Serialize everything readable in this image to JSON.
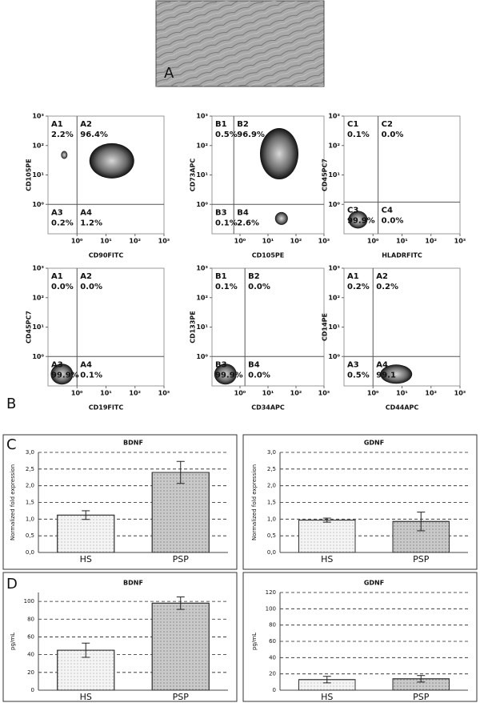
{
  "panel_labels": [
    "A",
    "B",
    "C",
    "D"
  ],
  "chart_data": [
    {
      "type": "flow",
      "xlabel": "CD90FITC",
      "ylabel": "CD105PE",
      "log_scale": true,
      "xlim": [
        0.1,
        1000
      ],
      "ylim": [
        0.1,
        1000
      ],
      "xticks": [
        {
          "value": 1,
          "label": "10⁰"
        },
        {
          "value": 10,
          "label": "10¹"
        },
        {
          "value": 100,
          "label": "10²"
        },
        {
          "value": 1000,
          "label": "10³"
        }
      ],
      "yticks": [
        {
          "value": 1,
          "label": "10⁰"
        },
        {
          "value": 10,
          "label": "10¹"
        },
        {
          "value": 100,
          "label": "10²"
        },
        {
          "value": 1000,
          "label": "10³"
        }
      ],
      "gates": [
        1,
        1
      ],
      "quadrants": [
        "A1",
        "A2",
        "A3",
        "A4"
      ],
      "values": [
        2.2,
        96.4,
        0.2,
        1.2
      ],
      "value_labels": [
        "2.2%",
        "96.4%",
        "0.2%",
        "1.2%"
      ]
    },
    {
      "type": "flow",
      "xlabel": "CD105PE",
      "ylabel": "CD73APC",
      "log_scale": true,
      "xlim": [
        0.1,
        1000
      ],
      "ylim": [
        0.1,
        1000
      ],
      "xticks": [
        {
          "value": 1,
          "label": "10⁰"
        },
        {
          "value": 10,
          "label": "10¹"
        },
        {
          "value": 100,
          "label": "10²"
        },
        {
          "value": 1000,
          "label": "10³"
        }
      ],
      "yticks": [
        {
          "value": 1,
          "label": "10⁰"
        },
        {
          "value": 10,
          "label": "10¹"
        },
        {
          "value": 100,
          "label": "10²"
        },
        {
          "value": 1000,
          "label": "10³"
        }
      ],
      "gates": [
        0.6,
        1
      ],
      "quadrants": [
        "B1",
        "B2",
        "B3",
        "B4"
      ],
      "values": [
        0.5,
        96.9,
        0.1,
        2.6
      ],
      "value_labels": [
        "0.5%",
        "96.9%",
        "0.1%",
        "2.6%"
      ]
    },
    {
      "type": "flow",
      "xlabel": "HLADRFITC",
      "ylabel": "CD45PC7",
      "log_scale": true,
      "xlim": [
        0.1,
        1000
      ],
      "ylim": [
        0.1,
        1000
      ],
      "xticks": [
        {
          "value": 1,
          "label": "10⁰"
        },
        {
          "value": 10,
          "label": "10¹"
        },
        {
          "value": 100,
          "label": "10²"
        },
        {
          "value": 1000,
          "label": "10³"
        }
      ],
      "yticks": [
        {
          "value": 1,
          "label": "10⁰"
        },
        {
          "value": 10,
          "label": "10¹"
        },
        {
          "value": 100,
          "label": "10²"
        },
        {
          "value": 1000,
          "label": "10³"
        }
      ],
      "gates": [
        1.5,
        1.2
      ],
      "quadrants": [
        "C1",
        "C2",
        "C3",
        "C4"
      ],
      "values": [
        0.1,
        0,
        99.9,
        0
      ],
      "value_labels": [
        "0.1%",
        "0.0%",
        "99.9%",
        "0.0%"
      ]
    },
    {
      "type": "flow",
      "xlabel": "CD19FITC",
      "ylabel": "CD45PC7",
      "log_scale": true,
      "xlim": [
        0.1,
        1000
      ],
      "ylim": [
        0.1,
        1000
      ],
      "xticks": [
        {
          "value": 1,
          "label": "10⁰"
        },
        {
          "value": 10,
          "label": "10¹"
        },
        {
          "value": 100,
          "label": "10²"
        },
        {
          "value": 1000,
          "label": "10³"
        }
      ],
      "yticks": [
        {
          "value": 1,
          "label": "10⁰"
        },
        {
          "value": 10,
          "label": "10¹"
        },
        {
          "value": 100,
          "label": "10²"
        },
        {
          "value": 1000,
          "label": "10³"
        }
      ],
      "gates": [
        1,
        1
      ],
      "quadrants": [
        "A1",
        "A2",
        "A3",
        "A4"
      ],
      "values": [
        0,
        0,
        99.9,
        0.1
      ],
      "value_labels": [
        "0.0%",
        "0.0%",
        "99.9%",
        "0.1%"
      ]
    },
    {
      "type": "flow",
      "xlabel": "CD34APC",
      "ylabel": "CD133PE",
      "log_scale": true,
      "xlim": [
        0.1,
        1000
      ],
      "ylim": [
        0.1,
        1000
      ],
      "xticks": [
        {
          "value": 1,
          "label": "10⁰"
        },
        {
          "value": 10,
          "label": "10¹"
        },
        {
          "value": 100,
          "label": "10²"
        },
        {
          "value": 1000,
          "label": "10³"
        }
      ],
      "yticks": [
        {
          "value": 1,
          "label": "10⁰"
        },
        {
          "value": 10,
          "label": "10¹"
        },
        {
          "value": 100,
          "label": "10²"
        },
        {
          "value": 1000,
          "label": "10³"
        }
      ],
      "gates": [
        1.5,
        1
      ],
      "quadrants": [
        "B1",
        "B2",
        "B3",
        "B4"
      ],
      "values": [
        0.1,
        0,
        99.9,
        0
      ],
      "value_labels": [
        "0.1%",
        "0.0%",
        "99.9%",
        "0.0%"
      ]
    },
    {
      "type": "flow",
      "xlabel": "CD44APC",
      "ylabel": "CD14PE",
      "log_scale": true,
      "xlim": [
        0.1,
        1000
      ],
      "ylim": [
        0.1,
        1000
      ],
      "xticks": [
        {
          "value": 1,
          "label": "10⁰"
        },
        {
          "value": 10,
          "label": "10¹"
        },
        {
          "value": 100,
          "label": "10²"
        },
        {
          "value": 1000,
          "label": "10³"
        }
      ],
      "yticks": [
        {
          "value": 1,
          "label": "10⁰"
        },
        {
          "value": 10,
          "label": "10¹"
        },
        {
          "value": 100,
          "label": "10²"
        },
        {
          "value": 1000,
          "label": "10³"
        }
      ],
      "gates": [
        1,
        1
      ],
      "quadrants": [
        "A1",
        "A2",
        "A3",
        "A4"
      ],
      "values": [
        0.2,
        0.2,
        0.5,
        99.1
      ],
      "value_labels": [
        "0.2%",
        "0.2%",
        "0.5%",
        "99.1"
      ]
    },
    {
      "type": "bar",
      "title": "BDNF",
      "ylabel": "Normalized fold expression",
      "categories": [
        "HS",
        "PSP"
      ],
      "values": [
        1.12,
        2.4
      ],
      "errors": [
        0.13,
        0.33
      ],
      "colors": [
        "#f4f4f4",
        "#c9c9c9"
      ],
      "ylim": [
        0,
        3
      ],
      "yticks": [
        {
          "value": 0,
          "label": "0,0"
        },
        {
          "value": 0.5,
          "label": "0,5"
        },
        {
          "value": 1,
          "label": "1,0"
        },
        {
          "value": 1.5,
          "label": "1,5"
        },
        {
          "value": 2,
          "label": "2,0"
        },
        {
          "value": 2.5,
          "label": "2,5"
        },
        {
          "value": 3,
          "label": "3,0"
        }
      ],
      "grid": true
    },
    {
      "type": "bar",
      "title": "GDNF",
      "ylabel": "Normalized fold expression",
      "categories": [
        "HS",
        "PSP"
      ],
      "values": [
        0.97,
        0.93
      ],
      "errors": [
        0.06,
        0.28
      ],
      "colors": [
        "#f4f4f4",
        "#c9c9c9"
      ],
      "ylim": [
        0,
        3
      ],
      "yticks": [
        {
          "value": 0,
          "label": "0,0"
        },
        {
          "value": 0.5,
          "label": "0,5"
        },
        {
          "value": 1,
          "label": "1,0"
        },
        {
          "value": 1.5,
          "label": "1,5"
        },
        {
          "value": 2,
          "label": "2,0"
        },
        {
          "value": 2.5,
          "label": "2,5"
        },
        {
          "value": 3,
          "label": "3,0"
        }
      ],
      "grid": true
    },
    {
      "type": "bar",
      "title": "BDNF",
      "ylabel": "pg/mL",
      "categories": [
        "HS",
        "PSP"
      ],
      "values": [
        45,
        98
      ],
      "errors": [
        8,
        7
      ],
      "colors": [
        "#f4f4f4",
        "#c9c9c9"
      ],
      "ylim": [
        0,
        110
      ],
      "yticks": [
        0,
        20,
        40,
        60,
        80,
        100
      ],
      "grid": true
    },
    {
      "type": "bar",
      "title": "GDNF",
      "ylabel": "pg/mL",
      "categories": [
        "HS",
        "PSP"
      ],
      "values": [
        13,
        14
      ],
      "errors": [
        4,
        4
      ],
      "colors": [
        "#f4f4f4",
        "#c9c9c9"
      ],
      "ylim": [
        0,
        120
      ],
      "yticks": [
        0,
        20,
        40,
        60,
        80,
        100,
        120
      ],
      "grid": true
    }
  ]
}
